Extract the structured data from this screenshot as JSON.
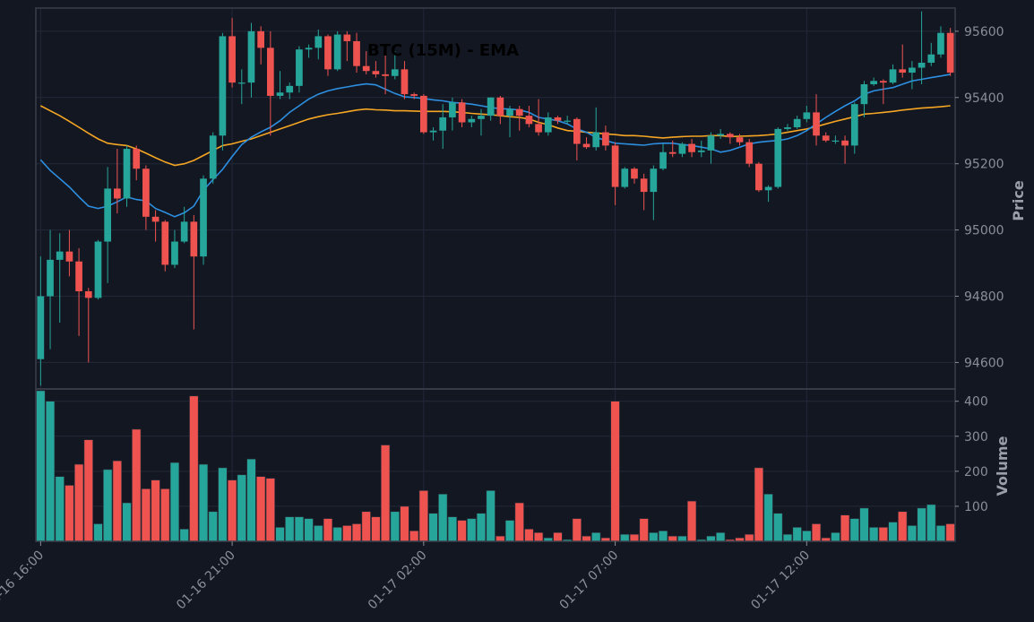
{
  "colors": {
    "background": "#131722",
    "grid": "#22283a",
    "frame": "#3a3f4b",
    "up": "#26a69a",
    "down": "#ef5350",
    "ema_fast": "#2d8fe0",
    "ema_slow": "#f5a623",
    "axis_text": "#8a8e99",
    "label_text": "#9a9ea8",
    "title_text": "#000000"
  },
  "chart_data": {
    "type": "candlestick",
    "title": "BTC (15M) - EMA",
    "price_axis": {
      "label": "Price",
      "range": [
        94520,
        95670
      ],
      "ticks": [
        94600,
        94800,
        95000,
        95200,
        95400,
        95600
      ]
    },
    "volume_axis": {
      "label": "Volume",
      "range": [
        0,
        435
      ],
      "ticks": [
        100,
        200,
        300,
        400
      ]
    },
    "x_ticks": [
      {
        "label": "01-16 16:00",
        "index": 0
      },
      {
        "label": "01-16 21:00",
        "index": 20
      },
      {
        "label": "01-17 02:00",
        "index": 40
      },
      {
        "label": "01-17 07:00",
        "index": 60
      },
      {
        "label": "01-17 12:00",
        "index": 80
      }
    ],
    "ohlc": [
      [
        94610,
        94800,
        94530,
        94920
      ],
      [
        94800,
        94910,
        94640,
        95000
      ],
      [
        94910,
        94935,
        94720,
        94990
      ],
      [
        94935,
        94905,
        94860,
        95000
      ],
      [
        94905,
        94815,
        94680,
        94945
      ],
      [
        94815,
        94795,
        94600,
        94825
      ],
      [
        94795,
        94965,
        94790,
        94970
      ],
      [
        94965,
        95125,
        94840,
        95190
      ],
      [
        95125,
        95095,
        95050,
        95245
      ],
      [
        95095,
        95245,
        95070,
        95255
      ],
      [
        95245,
        95185,
        95150,
        95255
      ],
      [
        95185,
        95040,
        95000,
        95195
      ],
      [
        95040,
        95025,
        94965,
        95060
      ],
      [
        95025,
        94895,
        94875,
        95030
      ],
      [
        94895,
        94965,
        94885,
        95000
      ],
      [
        94965,
        95025,
        94960,
        95070
      ],
      [
        95025,
        94920,
        94700,
        95045
      ],
      [
        94920,
        95155,
        94895,
        95165
      ],
      [
        95155,
        95285,
        95140,
        95295
      ],
      [
        95285,
        95585,
        95240,
        95595
      ],
      [
        95585,
        95445,
        95430,
        95640
      ],
      [
        95445,
        95445,
        95380,
        95485
      ],
      [
        95445,
        95600,
        95400,
        95625
      ],
      [
        95600,
        95550,
        95500,
        95615
      ],
      [
        95550,
        95405,
        95285,
        95600
      ],
      [
        95405,
        95415,
        95395,
        95480
      ],
      [
        95415,
        95435,
        95395,
        95445
      ],
      [
        95435,
        95545,
        95415,
        95555
      ],
      [
        95545,
        95550,
        95520,
        95560
      ],
      [
        95550,
        95585,
        95515,
        95605
      ],
      [
        95585,
        95485,
        95465,
        95590
      ],
      [
        95485,
        95590,
        95480,
        95600
      ],
      [
        95590,
        95570,
        95510,
        95600
      ],
      [
        95570,
        95495,
        95475,
        95595
      ],
      [
        95495,
        95480,
        95470,
        95540
      ],
      [
        95480,
        95470,
        95460,
        95510
      ],
      [
        95470,
        95465,
        95410,
        95530
      ],
      [
        95465,
        95485,
        95455,
        95540
      ],
      [
        95485,
        95410,
        95395,
        95510
      ],
      [
        95410,
        95405,
        95395,
        95415
      ],
      [
        95405,
        95295,
        95290,
        95410
      ],
      [
        95295,
        95300,
        95270,
        95310
      ],
      [
        95300,
        95340,
        95245,
        95380
      ],
      [
        95340,
        95385,
        95300,
        95400
      ],
      [
        95385,
        95325,
        95310,
        95395
      ],
      [
        95325,
        95335,
        95310,
        95345
      ],
      [
        95335,
        95345,
        95285,
        95365
      ],
      [
        95345,
        95400,
        95330,
        95400
      ],
      [
        95400,
        95345,
        95320,
        95405
      ],
      [
        95345,
        95365,
        95280,
        95375
      ],
      [
        95365,
        95345,
        95300,
        95375
      ],
      [
        95345,
        95320,
        95310,
        95375
      ],
      [
        95320,
        95295,
        95285,
        95395
      ],
      [
        95295,
        95340,
        95285,
        95355
      ],
      [
        95340,
        95330,
        95320,
        95345
      ],
      [
        95330,
        95330,
        95320,
        95345
      ],
      [
        95335,
        95260,
        95210,
        95340
      ],
      [
        95260,
        95250,
        95245,
        95280
      ],
      [
        95250,
        95295,
        95240,
        95370
      ],
      [
        95295,
        95255,
        95240,
        95315
      ],
      [
        95255,
        95130,
        95075,
        95265
      ],
      [
        95130,
        95185,
        95125,
        95190
      ],
      [
        95185,
        95155,
        95140,
        95190
      ],
      [
        95155,
        95115,
        95060,
        95170
      ],
      [
        95115,
        95185,
        95030,
        95195
      ],
      [
        95185,
        95235,
        95180,
        95260
      ],
      [
        95235,
        95230,
        95220,
        95270
      ],
      [
        95230,
        95260,
        95220,
        95265
      ],
      [
        95260,
        95235,
        95220,
        95275
      ],
      [
        95235,
        95240,
        95220,
        95270
      ],
      [
        95240,
        95285,
        95200,
        95295
      ],
      [
        95285,
        95290,
        95275,
        95305
      ],
      [
        95290,
        95280,
        95260,
        95295
      ],
      [
        95280,
        95265,
        95255,
        95290
      ],
      [
        95265,
        95200,
        95190,
        95275
      ],
      [
        95200,
        95120,
        95115,
        95205
      ],
      [
        95120,
        95130,
        95085,
        95135
      ],
      [
        95130,
        95305,
        95125,
        95310
      ],
      [
        95305,
        95310,
        95300,
        95320
      ],
      [
        95310,
        95335,
        95305,
        95345
      ],
      [
        95335,
        95355,
        95325,
        95375
      ],
      [
        95355,
        95285,
        95255,
        95410
      ],
      [
        95285,
        95270,
        95265,
        95295
      ],
      [
        95270,
        95270,
        95260,
        95285
      ],
      [
        95270,
        95255,
        95200,
        95285
      ],
      [
        95255,
        95380,
        95230,
        95385
      ],
      [
        95380,
        95440,
        95340,
        95450
      ],
      [
        95440,
        95450,
        95435,
        95460
      ],
      [
        95450,
        95445,
        95380,
        95455
      ],
      [
        95445,
        95485,
        95440,
        95500
      ],
      [
        95485,
        95475,
        95460,
        95560
      ],
      [
        95475,
        95490,
        95425,
        95510
      ],
      [
        95490,
        95505,
        95440,
        95660
      ],
      [
        95505,
        95530,
        95495,
        95565
      ],
      [
        95530,
        95595,
        95520,
        95615
      ],
      [
        95595,
        95475,
        95465,
        95610
      ]
    ],
    "volume": [
      430,
      400,
      185,
      160,
      220,
      290,
      50,
      205,
      230,
      110,
      320,
      150,
      175,
      150,
      225,
      35,
      415,
      220,
      85,
      210,
      175,
      190,
      235,
      185,
      180,
      40,
      70,
      70,
      65,
      45,
      65,
      40,
      45,
      50,
      85,
      70,
      275,
      85,
      100,
      30,
      145,
      80,
      135,
      70,
      60,
      65,
      80,
      145,
      15,
      60,
      110,
      35,
      25,
      10,
      25,
      5,
      65,
      15,
      25,
      10,
      400,
      20,
      20,
      65,
      25,
      30,
      15,
      15,
      115,
      5,
      15,
      25,
      5,
      10,
      20,
      210,
      135,
      80,
      20,
      40,
      30,
      50,
      10,
      25,
      75,
      65,
      95,
      40,
      40,
      55,
      85,
      45,
      95,
      105,
      45,
      50
    ],
    "ema_fast": [
      95212,
      95180,
      95155,
      95130,
      95100,
      95072,
      95065,
      95072,
      95085,
      95100,
      95092,
      95088,
      95065,
      95053,
      95040,
      95052,
      95072,
      95120,
      95152,
      95183,
      95222,
      95258,
      95280,
      95296,
      95310,
      95330,
      95355,
      95375,
      95395,
      95410,
      95420,
      95427,
      95432,
      95437,
      95441,
      95438,
      95425,
      95412,
      95402,
      95400,
      95397,
      95393,
      95390,
      95385,
      95383,
      95380,
      95375,
      95370,
      95366,
      95365,
      95362,
      95355,
      95340,
      95335,
      95330,
      95320,
      95305,
      95295,
      95280,
      95270,
      95262,
      95260,
      95258,
      95256,
      95260,
      95262,
      95262,
      95258,
      95255,
      95250,
      95245,
      95235,
      95240,
      95250,
      95260,
      95265,
      95268,
      95270,
      95275,
      95285,
      95300,
      95320,
      95340,
      95358,
      95375,
      95390,
      95410,
      95420,
      95425,
      95430,
      95440,
      95450,
      95455,
      95460,
      95465,
      95470
    ],
    "ema_slow": [
      95375,
      95360,
      95345,
      95328,
      95310,
      95292,
      95275,
      95262,
      95258,
      95255,
      95245,
      95232,
      95218,
      95205,
      95195,
      95200,
      95210,
      95225,
      95240,
      95255,
      95260,
      95268,
      95275,
      95285,
      95295,
      95305,
      95315,
      95325,
      95335,
      95342,
      95348,
      95352,
      95357,
      95362,
      95365,
      95363,
      95362,
      95360,
      95360,
      95359,
      95358,
      95358,
      95358,
      95357,
      95355,
      95352,
      95350,
      95348,
      95345,
      95342,
      95340,
      95335,
      95325,
      95318,
      95308,
      95300,
      95298,
      95295,
      95293,
      95290,
      95288,
      95285,
      95285,
      95283,
      95280,
      95278,
      95280,
      95282,
      95283,
      95283,
      95285,
      95285,
      95282,
      95283,
      95284,
      95285,
      95287,
      95290,
      95295,
      95300,
      95305,
      95312,
      95320,
      95328,
      95335,
      95342,
      95350,
      95352,
      95355,
      95358,
      95362,
      95365,
      95368,
      95370,
      95372,
      95375
    ]
  }
}
